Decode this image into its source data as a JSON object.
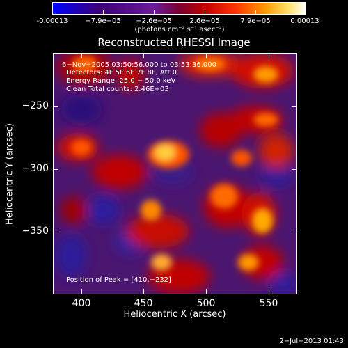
{
  "colorbar": {
    "labels": [
      "-0.00013",
      "−7.9e−05",
      "−2.6e−05",
      "2.6e−05",
      "7.9e−05",
      "0.00013"
    ],
    "units": "(photons cm⁻² s⁻¹ asec⁻²)",
    "colors": [
      "#0000ff",
      "#3b0078",
      "#6a1b9a",
      "#c00000",
      "#ff3300",
      "#ff9900",
      "#ffe066",
      "#ffffff"
    ]
  },
  "title": "Reconstructed RHESSI Image",
  "annotations": {
    "time": "6−Nov−2005 03:50:56.000 to 03:53:36.000",
    "detectors": "Detectors: 4F 5F 6F 7F 8F, Att 0",
    "energy": "Energy Range: 25.0 − 50.0 keV",
    "clean": "Clean    Total counts: 2.46E+03",
    "peak": "Position of Peak = [410,−232]"
  },
  "chart_data": {
    "type": "heatmap",
    "title": "Reconstructed RHESSI Image",
    "xlabel": "Heliocentric X (arcsec)",
    "ylabel": "Heliocentric Y (arcsec)",
    "xlim": [
      377,
      573
    ],
    "ylim": [
      -397,
      -204
    ],
    "x_ticks": [
      "400",
      "450",
      "500",
      "550"
    ],
    "y_ticks": [
      "−250",
      "−300",
      "−350"
    ],
    "colorbar_range": [
      -0.00013,
      0.00013
    ]
  },
  "footer": {
    "timestamp": "2−Jul−2013 01:43"
  }
}
